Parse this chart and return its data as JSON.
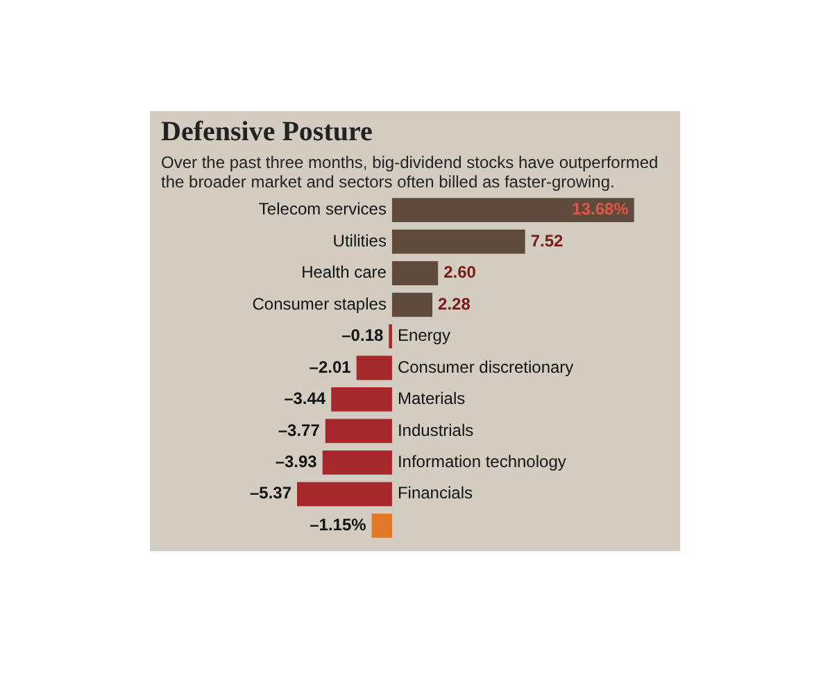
{
  "chart_data": {
    "type": "bar",
    "orientation": "horizontal",
    "title": "Defensive Posture",
    "subtitle": "Over the past three months, big-dividend stocks have outperformed the broader market and sectors often billed as faster-growing.",
    "categories": [
      "Telecom services",
      "Utilities",
      "Health care",
      "Consumer staples",
      "Energy",
      "Consumer discretionary",
      "Materials",
      "Industrials",
      "Information technology",
      "Financials",
      null
    ],
    "values": [
      13.68,
      7.52,
      2.6,
      2.28,
      -0.18,
      -2.01,
      -3.44,
      -3.77,
      -3.93,
      -5.37,
      -1.15
    ],
    "colors": [
      "#5e4b3c",
      "#5e4b3c",
      "#5e4b3c",
      "#5e4b3c",
      "#a5282a",
      "#a5282a",
      "#a5282a",
      "#a5282a",
      "#a5282a",
      "#a5282a",
      "#e07a2a"
    ],
    "value_labels": [
      "13.68%",
      "7.52",
      "2.60",
      "2.28",
      "–0.18",
      "–2.01",
      "–3.44",
      "–3.77",
      "–3.93",
      "–5.37",
      "–1.15%"
    ],
    "legend": false
  }
}
